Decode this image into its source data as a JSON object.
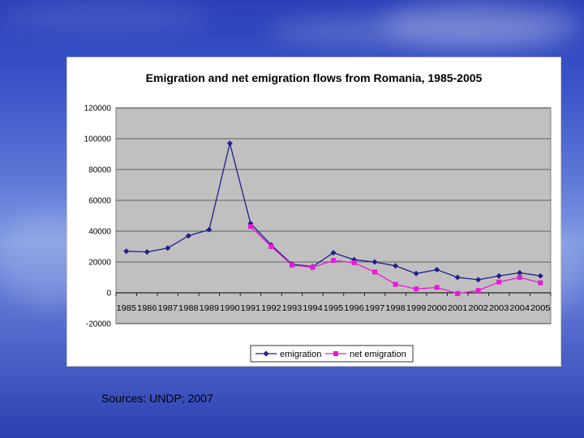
{
  "chart_data": {
    "type": "line",
    "title": "Emigration and net emigration flows from Romania, 1985-2005",
    "categories": [
      "1985",
      "1986",
      "1987",
      "1988",
      "1989",
      "1990",
      "1991",
      "1992",
      "1993",
      "1994",
      "1995",
      "1996",
      "1997",
      "1998",
      "1999",
      "2000",
      "2001",
      "2002",
      "2003",
      "2004",
      "2005"
    ],
    "ylim": [
      -20000,
      120000
    ],
    "yticks": [
      -20000,
      0,
      20000,
      40000,
      60000,
      80000,
      100000,
      120000
    ],
    "grid": true,
    "legend_position": "bottom",
    "series": [
      {
        "name": "emigration",
        "color": "#1f1f8a",
        "marker": "diamond",
        "values": [
          27000,
          26500,
          29000,
          37000,
          41000,
          97000,
          45000,
          31000,
          18500,
          17000,
          26000,
          21500,
          20000,
          17500,
          12500,
          15000,
          10000,
          8500,
          11000,
          13000,
          11000
        ]
      },
      {
        "name": "net emigration",
        "color": "#e81ad8",
        "marker": "square",
        "values": [
          null,
          null,
          null,
          null,
          null,
          null,
          43000,
          30000,
          18000,
          16500,
          21000,
          19500,
          13500,
          5500,
          2500,
          3500,
          -500,
          1500,
          7000,
          10000,
          6500
        ]
      }
    ]
  },
  "source_note": "Sources: UNDP; 2007"
}
